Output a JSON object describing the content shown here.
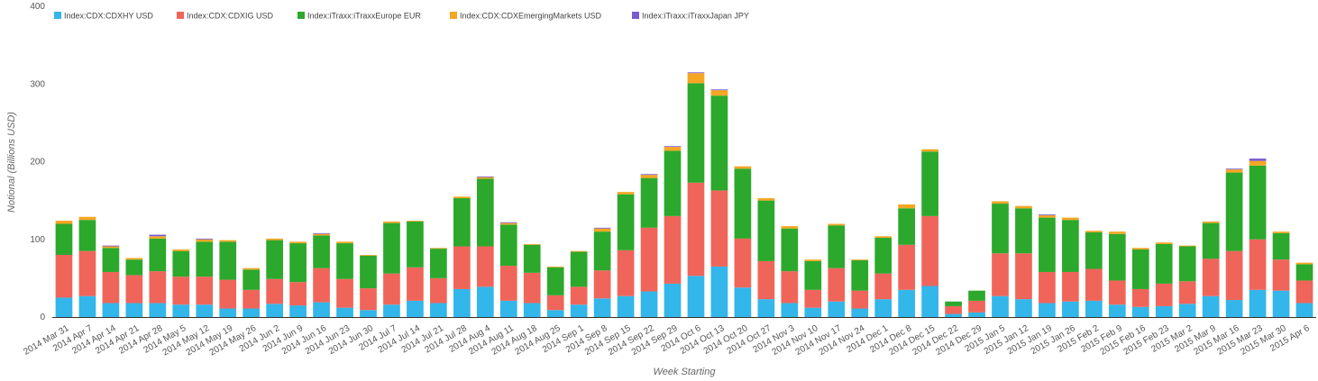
{
  "chart_data": {
    "type": "bar",
    "stacked": true,
    "title": "",
    "xlabel": "Week Starting",
    "ylabel": "Notional (Billions USD)",
    "ylim": [
      0,
      400
    ],
    "yticks": [
      "0",
      "100",
      "200",
      "300",
      "400"
    ],
    "legend_position": "top-left",
    "grid": false,
    "categories": [
      "2014 Mar 31",
      "2014 Apr 7",
      "2014 Apr 14",
      "2014 Apr 21",
      "2014 Apr 28",
      "2014 May 5",
      "2014 May 12",
      "2014 May 19",
      "2014 May 26",
      "2014 Jun 2",
      "2014 Jun 9",
      "2014 Jun 16",
      "2014 Jun 23",
      "2014 Jun 30",
      "2014 Jul 7",
      "2014 Jul 14",
      "2014 Jul 21",
      "2014 Jul 28",
      "2014 Aug 4",
      "2014 Aug 11",
      "2014 Aug 18",
      "2014 Aug 25",
      "2014 Sep 1",
      "2014 Sep 8",
      "2014 Sep 15",
      "2014 Sep 22",
      "2014 Sep 29",
      "2014 Oct 6",
      "2014 Oct 13",
      "2014 Oct 20",
      "2014 Oct 27",
      "2014 Nov 3",
      "2014 Nov 10",
      "2014 Nov 17",
      "2014 Nov 24",
      "2014 Dec 1",
      "2014 Dec 8",
      "2014 Dec 15",
      "2014 Dec 22",
      "2014 Dec 29",
      "2015 Jan 5",
      "2015 Jan 12",
      "2015 Jan 19",
      "2015 Jan 26",
      "2015 Feb 2",
      "2015 Feb 9",
      "2015 Feb 16",
      "2015 Feb 23",
      "2015 Mar 2",
      "2015 Mar 9",
      "2015 Mar 16",
      "2015 Mar 23",
      "2015 Mar 30",
      "2015 Apr 6"
    ],
    "series": [
      {
        "name": "Index:CDX:CDXHY USD",
        "color": "#33b6ea",
        "values": [
          25,
          27,
          18,
          18,
          18,
          16,
          16,
          11,
          11,
          17,
          15,
          19,
          12,
          9,
          16,
          21,
          18,
          36,
          39,
          21,
          18,
          9,
          16,
          24,
          27,
          33,
          43,
          53,
          65,
          38,
          23,
          18,
          12,
          20,
          11,
          23,
          35,
          40,
          4,
          6,
          27,
          23,
          18,
          20,
          21,
          16,
          13,
          14,
          17,
          27,
          22,
          35,
          34,
          18
        ]
      },
      {
        "name": "Index:CDX:CDXIG USD",
        "color": "#f0655a",
        "values": [
          55,
          58,
          40,
          36,
          41,
          36,
          36,
          37,
          24,
          32,
          30,
          44,
          37,
          28,
          40,
          43,
          32,
          55,
          52,
          45,
          39,
          19,
          23,
          36,
          59,
          82,
          87,
          120,
          98,
          63,
          49,
          41,
          23,
          43,
          23,
          33,
          58,
          90,
          10,
          15,
          55,
          59,
          40,
          38,
          41,
          31,
          23,
          29,
          29,
          48,
          63,
          65,
          40,
          29
        ]
      },
      {
        "name": "Index:iTraxx:iTraxxEurope EUR",
        "color": "#2ca82c",
        "values": [
          40,
          40,
          31,
          20,
          42,
          33,
          45,
          49,
          26,
          50,
          50,
          42,
          46,
          42,
          65,
          59,
          38,
          62,
          87,
          53,
          36,
          36,
          45,
          50,
          72,
          64,
          84,
          128,
          122,
          90,
          78,
          55,
          37,
          55,
          39,
          46,
          47,
          83,
          6,
          13,
          64,
          58,
          70,
          67,
          47,
          60,
          51,
          51,
          45,
          46,
          101,
          95,
          34,
          21
        ]
      },
      {
        "name": "Index:CDX:CDXEmergingMarkets USD",
        "color": "#f5a623",
        "values": [
          4,
          4,
          2,
          2,
          3,
          2,
          3,
          2,
          2,
          2,
          2,
          2,
          2,
          1,
          2,
          1,
          1,
          2,
          2,
          2,
          1,
          1,
          1,
          4,
          3,
          4,
          5,
          13,
          7,
          3,
          3,
          3,
          2,
          2,
          1,
          2,
          5,
          3,
          0,
          0,
          3,
          3,
          3,
          3,
          2,
          3,
          2,
          2,
          1,
          2,
          4,
          6,
          2,
          2
        ]
      },
      {
        "name": "Index:iTraxx:iTraxxJapan JPY",
        "color": "#7b5bd1",
        "values": [
          0,
          0,
          1,
          0,
          2,
          0,
          1,
          0,
          0,
          0,
          0,
          1,
          0,
          0,
          0,
          0,
          0,
          0,
          1,
          1,
          0,
          0,
          0,
          1,
          0,
          1,
          1,
          1,
          1,
          0,
          0,
          0,
          0,
          0,
          0,
          0,
          0,
          0,
          0,
          0,
          0,
          0,
          1,
          0,
          0,
          0,
          0,
          0,
          0,
          0,
          1,
          3,
          0,
          0
        ]
      }
    ]
  }
}
